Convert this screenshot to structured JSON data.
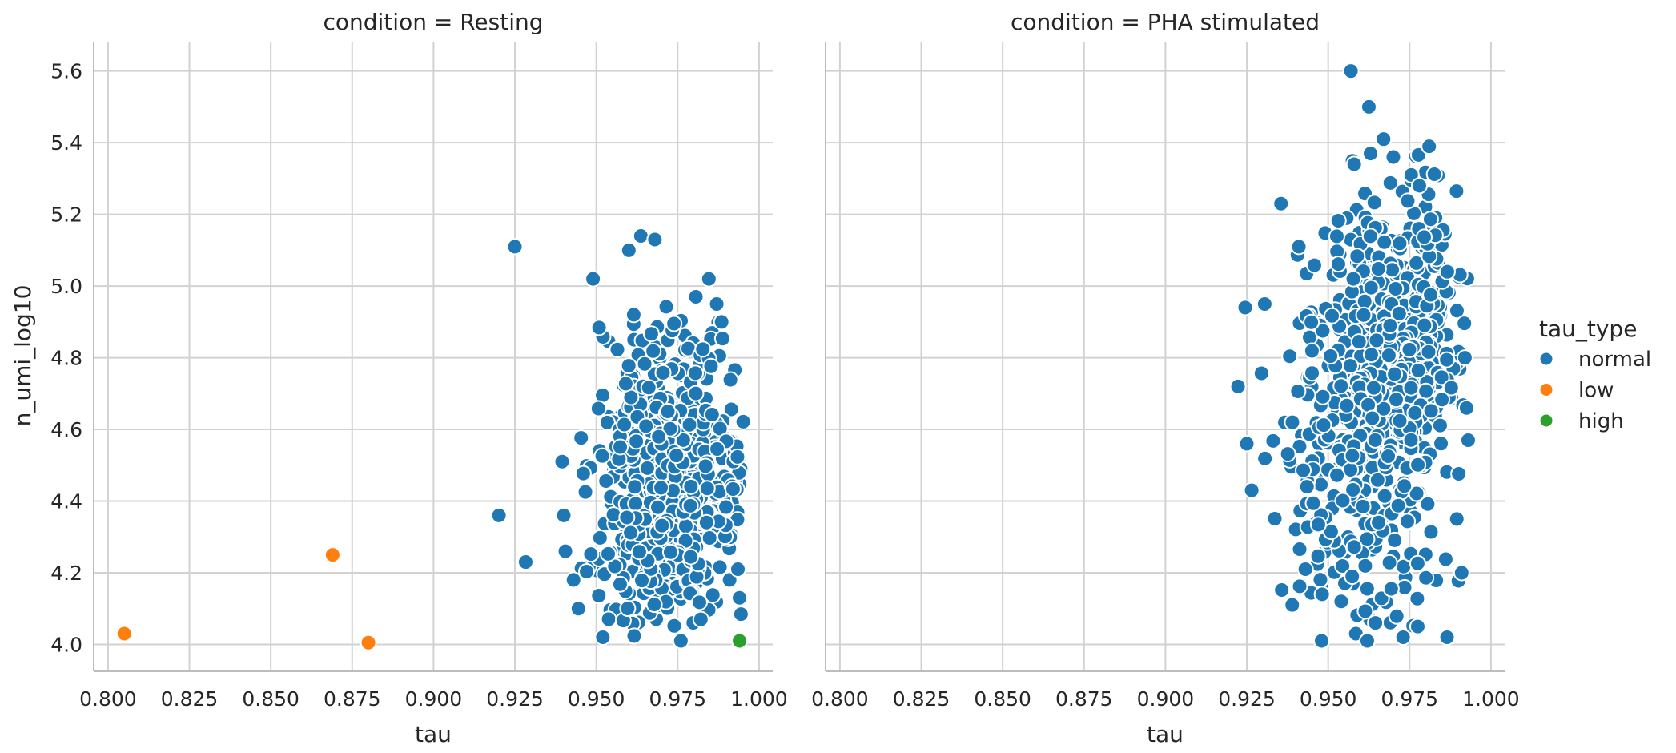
{
  "figure": {
    "background": "#ffffff",
    "grid_color": "#d2d2d2",
    "spine_color": "#bdbdbd",
    "text_color": "#262626",
    "marker_edge_color": "#ffffff"
  },
  "legend": {
    "title": "tau_type",
    "items": [
      {
        "label": "normal",
        "color": "#1f77b4"
      },
      {
        "label": "low",
        "color": "#ff7f0e"
      },
      {
        "label": "high",
        "color": "#2ca02c"
      }
    ]
  },
  "chart_data": [
    {
      "type": "scatter",
      "title": "condition = Resting",
      "xlabel": "tau",
      "ylabel": "n_umi_log10",
      "xlim": [
        0.7956,
        1.0042
      ],
      "ylim": [
        3.925,
        5.682
      ],
      "grid": true,
      "xticks": [
        0.8,
        0.825,
        0.85,
        0.875,
        0.9,
        0.925,
        0.95,
        0.975,
        1.0
      ],
      "xtick_labels": [
        "0.800",
        "0.825",
        "0.850",
        "0.875",
        "0.900",
        "0.925",
        "0.950",
        "0.975",
        "1.000"
      ],
      "yticks": [
        4.0,
        4.2,
        4.4,
        4.6,
        4.8,
        5.0,
        5.2,
        5.4,
        5.6
      ],
      "ytick_labels": [
        "4.0",
        "4.2",
        "4.4",
        "4.6",
        "4.8",
        "5.0",
        "5.2",
        "5.4",
        "5.6"
      ],
      "series": [
        {
          "name": "normal",
          "color": "#1f77b4",
          "clusters": [
            {
              "n": 680,
              "cx": 0.9715,
              "cy": 4.44,
              "sx": 0.0115,
              "sy": 0.205,
              "xmin": 0.9435,
              "xmax": 0.9952,
              "ymin": 4.005,
              "ymax": 4.975,
              "seed": 42
            }
          ],
          "points": [
            [
              0.925,
              5.11
            ],
            [
              0.949,
              5.02
            ],
            [
              0.96,
              5.1
            ],
            [
              0.9637,
              5.14
            ],
            [
              0.968,
              5.13
            ],
            [
              0.9846,
              5.02
            ],
            [
              0.9806,
              4.97
            ],
            [
              0.9615,
              4.92
            ],
            [
              0.987,
              4.95
            ],
            [
              0.9885,
              4.9
            ],
            [
              0.9201,
              4.36
            ],
            [
              0.9283,
              4.23
            ],
            [
              0.9395,
              4.51
            ],
            [
              0.94,
              4.36
            ],
            [
              0.9405,
              4.26
            ],
            [
              0.943,
              4.18
            ],
            [
              0.9445,
              4.1
            ],
            [
              0.952,
              4.02
            ],
            [
              0.976,
              4.01
            ],
            [
              0.994,
              4.13
            ],
            [
              0.9935,
              4.21
            ]
          ]
        },
        {
          "name": "low",
          "color": "#ff7f0e",
          "clusters": [],
          "points": [
            [
              0.805,
              4.03
            ],
            [
              0.869,
              4.25
            ],
            [
              0.88,
              4.005
            ]
          ]
        },
        {
          "name": "high",
          "color": "#2ca02c",
          "clusters": [],
          "points": [
            [
              0.994,
              4.01
            ]
          ]
        }
      ]
    },
    {
      "type": "scatter",
      "title": "condition = PHA stimulated",
      "xlabel": "tau",
      "ylabel": "",
      "xlim": [
        0.7956,
        1.0042
      ],
      "ylim": [
        3.925,
        5.682
      ],
      "grid": true,
      "xticks": [
        0.8,
        0.825,
        0.85,
        0.875,
        0.9,
        0.925,
        0.95,
        0.975,
        1.0
      ],
      "xtick_labels": [
        "0.800",
        "0.825",
        "0.850",
        "0.875",
        "0.900",
        "0.925",
        "0.950",
        "0.975",
        "1.000"
      ],
      "yticks": [
        4.0,
        4.2,
        4.4,
        4.6,
        4.8,
        5.0,
        5.2,
        5.4,
        5.6
      ],
      "ytick_labels": [
        "4.0",
        "4.2",
        "4.4",
        "4.6",
        "4.8",
        "5.0",
        "5.2",
        "5.4",
        "5.6"
      ],
      "series": [
        {
          "name": "normal",
          "color": "#1f77b4",
          "clusters": [
            {
              "n": 340,
              "cx": 0.9725,
              "cy": 4.95,
              "sx": 0.009,
              "sy": 0.17,
              "xmin": 0.941,
              "xmax": 0.9935,
              "ymin": 4.55,
              "ymax": 5.38,
              "seed": 7
            },
            {
              "n": 170,
              "cx": 0.966,
              "cy": 4.72,
              "sx": 0.011,
              "sy": 0.13,
              "xmin": 0.938,
              "xmax": 0.992,
              "ymin": 4.45,
              "ymax": 5.0,
              "seed": 13
            },
            {
              "n": 200,
              "cx": 0.9625,
              "cy": 4.4,
              "sx": 0.0125,
              "sy": 0.2,
              "xmin": 0.932,
              "xmax": 0.992,
              "ymin": 4.0,
              "ymax": 4.85,
              "seed": 99
            },
            {
              "n": 55,
              "cx": 0.9445,
              "cy": 4.73,
              "sx": 0.0075,
              "sy": 0.27,
              "xmin": 0.9245,
              "xmax": 0.96,
              "ymin": 4.12,
              "ymax": 5.24,
              "seed": 5
            }
          ],
          "points": [
            [
              0.957,
              5.6
            ],
            [
              0.9625,
              5.5
            ],
            [
              0.967,
              5.41
            ],
            [
              0.981,
              5.39
            ],
            [
              0.958,
              5.34
            ],
            [
              0.963,
              5.37
            ],
            [
              0.97,
              5.36
            ],
            [
              0.9755,
              5.31
            ],
            [
              0.978,
              5.28
            ],
            [
              0.9355,
              5.23
            ],
            [
              0.941,
              5.11
            ],
            [
              0.9305,
              4.95
            ],
            [
              0.9245,
              4.94
            ],
            [
              0.9223,
              4.72
            ],
            [
              0.925,
              4.56
            ],
            [
              0.9265,
              4.43
            ],
            [
              0.993,
              4.57
            ],
            [
              0.9925,
              4.66
            ],
            [
              0.992,
              4.8
            ],
            [
              0.991,
              4.2
            ],
            [
              0.9895,
              4.35
            ],
            [
              0.948,
              4.01
            ],
            [
              0.9585,
              4.03
            ],
            [
              0.962,
              4.01
            ],
            [
              0.9645,
              4.06
            ],
            [
              0.973,
              4.02
            ],
            [
              0.9775,
              4.05
            ],
            [
              0.9865,
              4.02
            ],
            [
              0.954,
              4.12
            ],
            [
              0.9435,
              4.44
            ],
            [
              0.943,
              4.21
            ],
            [
              0.939,
              4.62
            ]
          ]
        }
      ]
    }
  ]
}
